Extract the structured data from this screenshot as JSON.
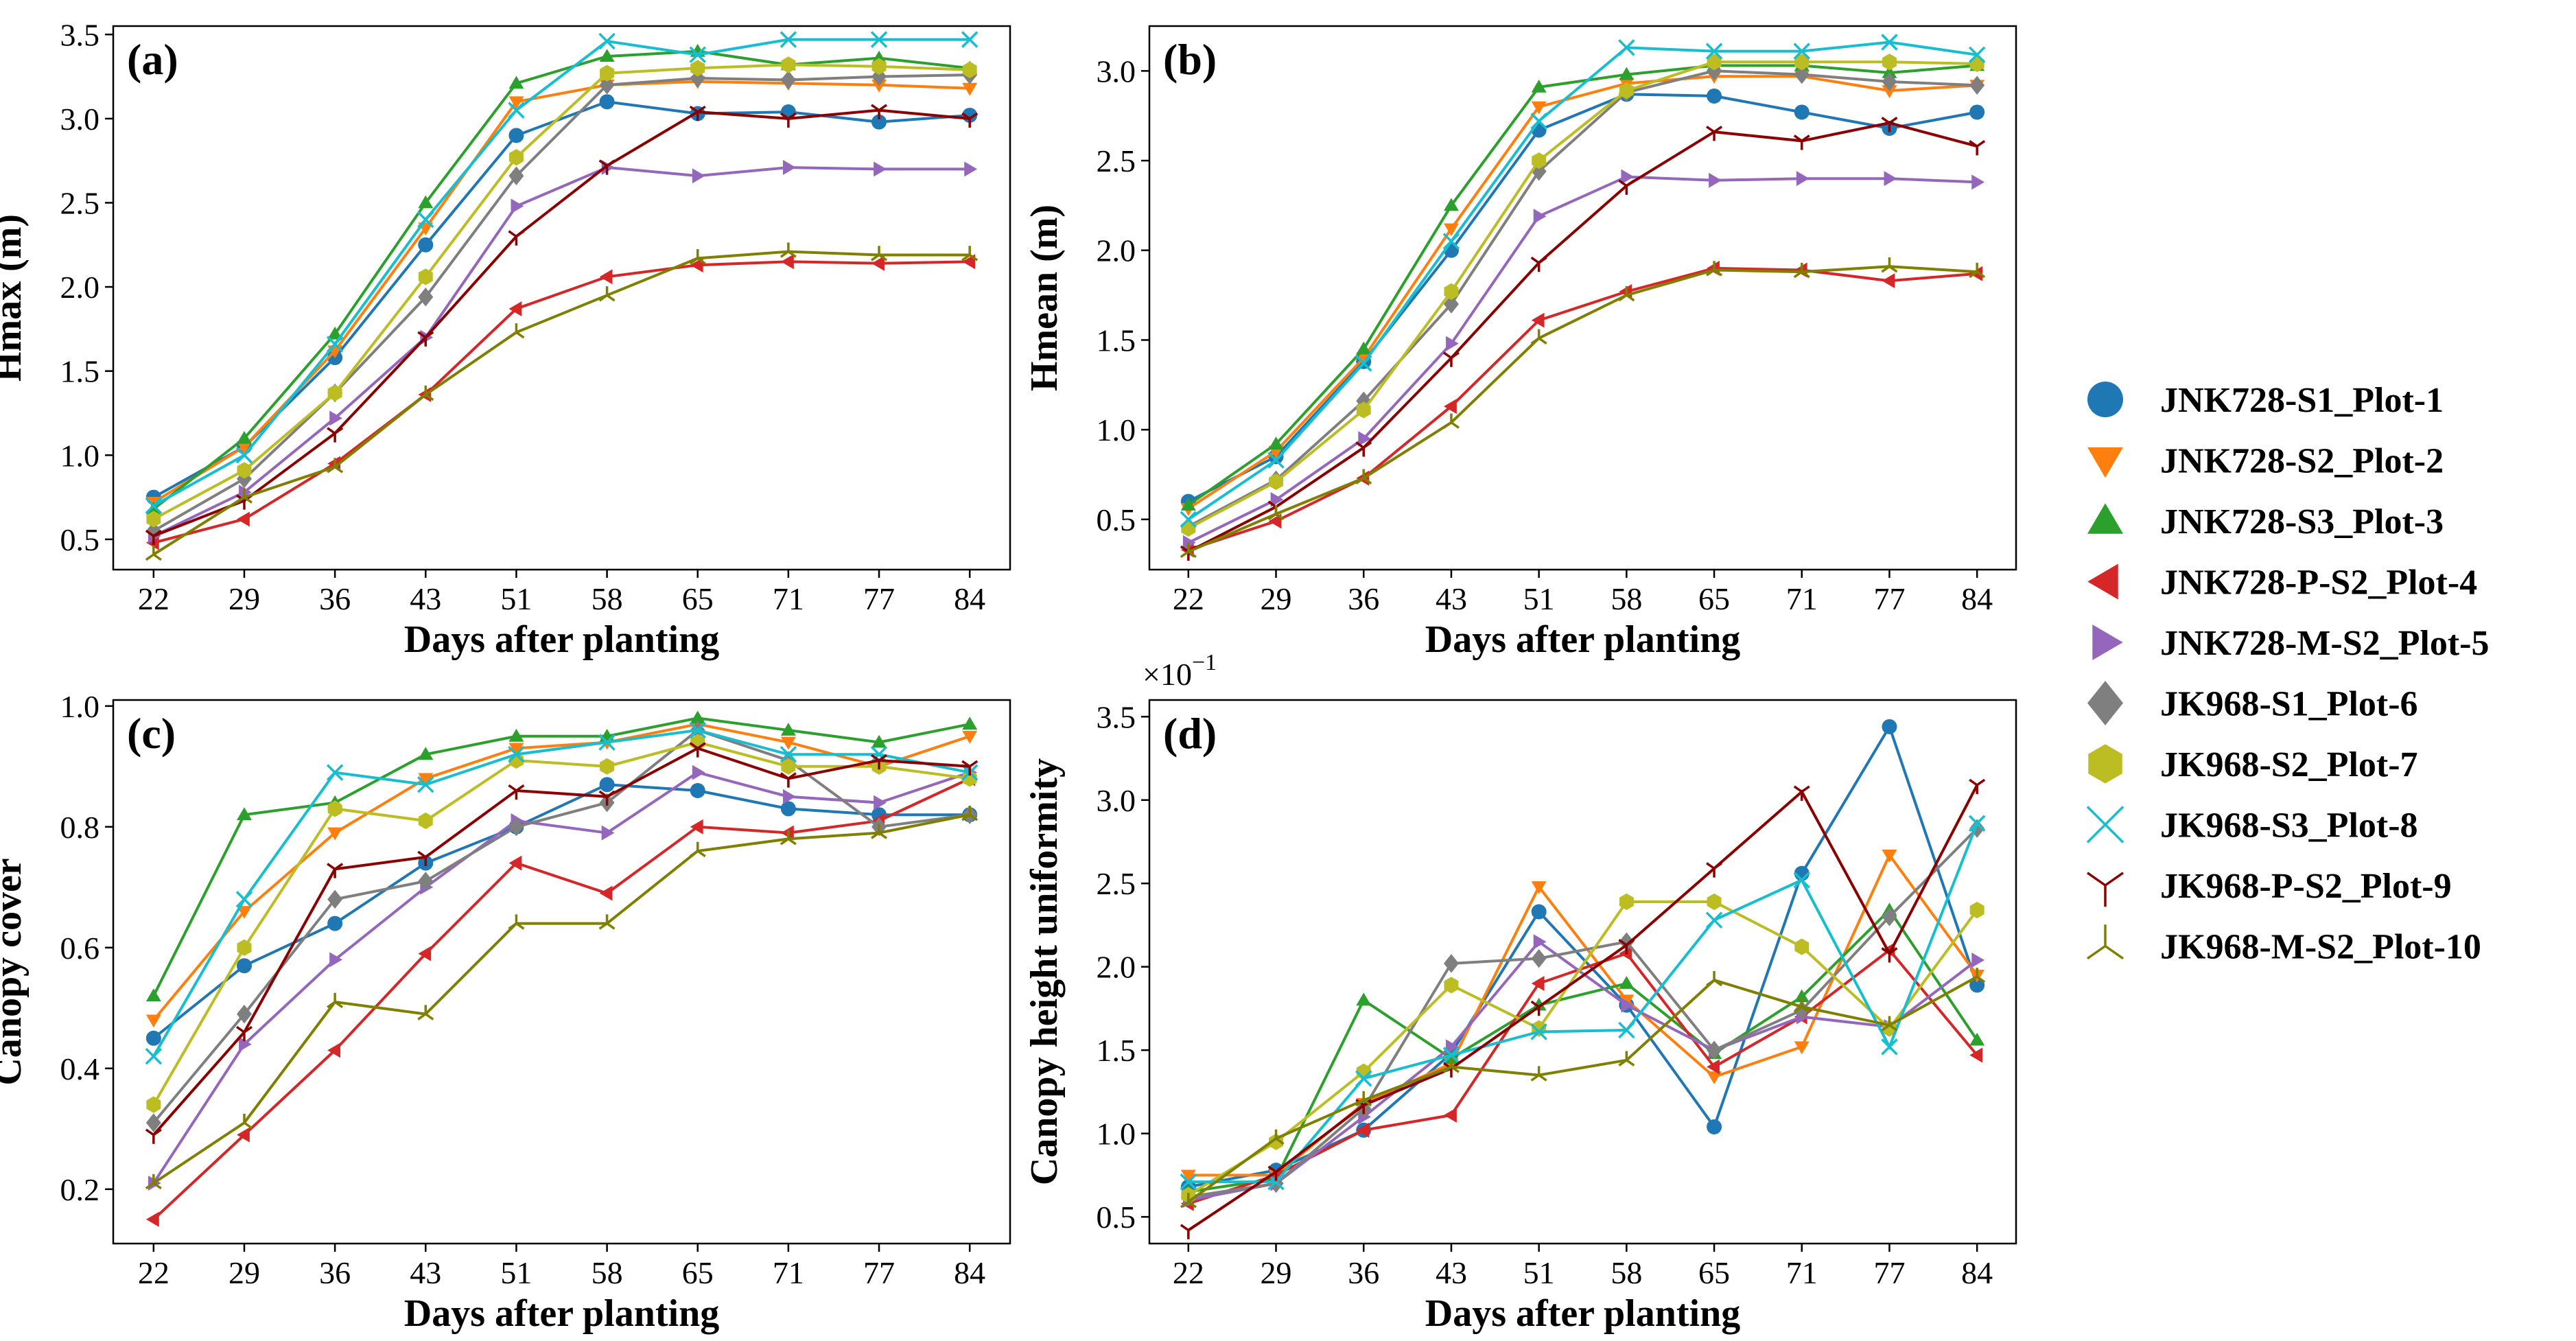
{
  "chart_data": [
    {
      "type": "line",
      "panel": "(a)",
      "xlabel": "Days after planting",
      "ylabel": "Hmax (m)",
      "ylim": [
        0.32,
        3.55
      ],
      "yticks": [
        0.5,
        1.0,
        1.5,
        2.0,
        2.5,
        3.0,
        3.5
      ],
      "ytick_labels": [
        "0.5",
        "1.0",
        "1.5",
        "2.0",
        "2.5",
        "3.0",
        "3.5"
      ],
      "series": [
        {
          "name": "JNK728-S1_Plot-1",
          "values": [
            0.75,
            1.05,
            1.58,
            2.25,
            2.9,
            3.1,
            3.03,
            3.04,
            2.98,
            3.02
          ]
        },
        {
          "name": "JNK728-S2_Plot-2",
          "values": [
            0.72,
            1.05,
            1.62,
            2.35,
            3.1,
            3.2,
            3.22,
            3.21,
            3.2,
            3.18
          ]
        },
        {
          "name": "JNK728-S3_Plot-3",
          "values": [
            0.68,
            1.1,
            1.72,
            2.5,
            3.21,
            3.37,
            3.4,
            3.32,
            3.36,
            3.3
          ]
        },
        {
          "name": "JNK728-P-S2_Plot-4",
          "values": [
            0.48,
            0.62,
            0.95,
            1.36,
            1.87,
            2.06,
            2.13,
            2.15,
            2.14,
            2.15
          ]
        },
        {
          "name": "JNK728-M-S2_Plot-5",
          "values": [
            0.52,
            0.78,
            1.22,
            1.7,
            2.48,
            2.71,
            2.66,
            2.71,
            2.7,
            2.7
          ]
        },
        {
          "name": "JK968-S1_Plot-6",
          "values": [
            0.55,
            0.86,
            1.37,
            1.94,
            2.66,
            3.2,
            3.24,
            3.23,
            3.25,
            3.26
          ]
        },
        {
          "name": "JK968-S2_Plot-7",
          "values": [
            0.62,
            0.91,
            1.37,
            2.06,
            2.77,
            3.27,
            3.3,
            3.32,
            3.31,
            3.29
          ]
        },
        {
          "name": "JK968-S3_Plot-8",
          "values": [
            0.7,
            1.0,
            1.66,
            2.4,
            3.05,
            3.46,
            3.38,
            3.47,
            3.47,
            3.47
          ]
        },
        {
          "name": "JK968-P-S2_Plot-9",
          "values": [
            0.52,
            0.73,
            1.13,
            1.7,
            2.3,
            2.72,
            3.04,
            3.0,
            3.05,
            3.0
          ]
        },
        {
          "name": "JK968-M-S2_Plot-10",
          "values": [
            0.41,
            0.75,
            0.93,
            1.36,
            1.73,
            1.95,
            2.17,
            2.21,
            2.19,
            2.19
          ]
        }
      ]
    },
    {
      "type": "line",
      "panel": "(b)",
      "xlabel": "Days after planting",
      "ylabel": "Hmean (m)",
      "ylim": [
        0.22,
        3.25
      ],
      "yticks": [
        0.5,
        1.0,
        1.5,
        2.0,
        2.5,
        3.0
      ],
      "ytick_labels": [
        "0.5",
        "1.0",
        "1.5",
        "2.0",
        "2.5",
        "3.0"
      ],
      "series": [
        {
          "name": "JNK728-S1_Plot-1",
          "values": [
            0.6,
            0.85,
            1.38,
            2.0,
            2.67,
            2.87,
            2.86,
            2.77,
            2.68,
            2.77
          ]
        },
        {
          "name": "JNK728-S2_Plot-2",
          "values": [
            0.56,
            0.88,
            1.4,
            2.12,
            2.8,
            2.93,
            2.97,
            2.97,
            2.89,
            2.92
          ]
        },
        {
          "name": "JNK728-S3_Plot-3",
          "values": [
            0.58,
            0.92,
            1.45,
            2.25,
            2.91,
            2.98,
            3.03,
            3.03,
            2.99,
            3.03
          ]
        },
        {
          "name": "JNK728-P-S2_Plot-4",
          "values": [
            0.33,
            0.49,
            0.73,
            1.13,
            1.61,
            1.77,
            1.9,
            1.89,
            1.83,
            1.87
          ]
        },
        {
          "name": "JNK728-M-S2_Plot-5",
          "values": [
            0.37,
            0.61,
            0.95,
            1.48,
            2.19,
            2.41,
            2.39,
            2.4,
            2.4,
            2.38
          ]
        },
        {
          "name": "JK968-S1_Plot-6",
          "values": [
            0.46,
            0.72,
            1.16,
            1.7,
            2.44,
            2.88,
            3.0,
            2.98,
            2.94,
            2.92
          ]
        },
        {
          "name": "JK968-S2_Plot-7",
          "values": [
            0.45,
            0.71,
            1.11,
            1.77,
            2.5,
            2.89,
            3.05,
            3.05,
            3.05,
            3.04
          ]
        },
        {
          "name": "JK968-S3_Plot-8",
          "values": [
            0.5,
            0.83,
            1.37,
            2.05,
            2.72,
            3.13,
            3.11,
            3.11,
            3.16,
            3.09
          ]
        },
        {
          "name": "JK968-P-S2_Plot-9",
          "values": [
            0.32,
            0.57,
            0.9,
            1.4,
            1.93,
            2.36,
            2.66,
            2.61,
            2.71,
            2.58
          ]
        },
        {
          "name": "JK968-M-S2_Plot-10",
          "values": [
            0.32,
            0.53,
            0.73,
            1.04,
            1.51,
            1.75,
            1.89,
            1.88,
            1.91,
            1.88
          ]
        }
      ]
    },
    {
      "type": "line",
      "panel": "(c)",
      "xlabel": "Days after planting",
      "ylabel": "Canopy cover",
      "ylim": [
        0.11,
        1.01
      ],
      "yticks": [
        0.2,
        0.4,
        0.6,
        0.8,
        1.0
      ],
      "ytick_labels": [
        "0.2",
        "0.4",
        "0.6",
        "0.8",
        "1.0"
      ],
      "series": [
        {
          "name": "JNK728-S1_Plot-1",
          "values": [
            0.45,
            0.57,
            0.64,
            0.74,
            0.8,
            0.87,
            0.86,
            0.83,
            0.82,
            0.82
          ]
        },
        {
          "name": "JNK728-S2_Plot-2",
          "values": [
            0.48,
            0.66,
            0.79,
            0.88,
            0.93,
            0.94,
            0.97,
            0.94,
            0.9,
            0.95
          ]
        },
        {
          "name": "JNK728-S3_Plot-3",
          "values": [
            0.52,
            0.82,
            0.84,
            0.92,
            0.95,
            0.95,
            0.98,
            0.96,
            0.94,
            0.97
          ]
        },
        {
          "name": "JNK728-P-S2_Plot-4",
          "values": [
            0.15,
            0.29,
            0.43,
            0.59,
            0.74,
            0.69,
            0.8,
            0.79,
            0.81,
            0.88
          ]
        },
        {
          "name": "JNK728-M-S2_Plot-5",
          "values": [
            0.21,
            0.44,
            0.58,
            0.7,
            0.81,
            0.79,
            0.89,
            0.85,
            0.84,
            0.89
          ]
        },
        {
          "name": "JK968-S1_Plot-6",
          "values": [
            0.31,
            0.49,
            0.68,
            0.71,
            0.8,
            0.84,
            0.96,
            0.91,
            0.8,
            0.82
          ]
        },
        {
          "name": "JK968-S2_Plot-7",
          "values": [
            0.34,
            0.6,
            0.83,
            0.81,
            0.91,
            0.9,
            0.94,
            0.9,
            0.9,
            0.88
          ]
        },
        {
          "name": "JK968-S3_Plot-8",
          "values": [
            0.42,
            0.68,
            0.89,
            0.87,
            0.92,
            0.94,
            0.96,
            0.92,
            0.92,
            0.89
          ]
        },
        {
          "name": "JK968-P-S2_Plot-9",
          "values": [
            0.29,
            0.46,
            0.73,
            0.75,
            0.86,
            0.85,
            0.93,
            0.88,
            0.91,
            0.9
          ]
        },
        {
          "name": "JK968-M-S2_Plot-10",
          "values": [
            0.21,
            0.31,
            0.51,
            0.49,
            0.64,
            0.64,
            0.76,
            0.78,
            0.79,
            0.82
          ]
        }
      ]
    },
    {
      "type": "line",
      "panel": "(d)",
      "xlabel": "Days after planting",
      "ylabel": "Canopy height uniformity",
      "y_scale_label": "×10",
      "y_scale_exp": "−1",
      "ylim": [
        0.34,
        3.6
      ],
      "yticks": [
        0.5,
        1.0,
        1.5,
        2.0,
        2.5,
        3.0,
        3.5
      ],
      "ytick_labels": [
        "0.5",
        "1.0",
        "1.5",
        "2.0",
        "2.5",
        "3.0",
        "3.5"
      ],
      "series": [
        {
          "name": "JNK728-S1_Plot-1",
          "values": [
            0.68,
            0.78,
            1.02,
            1.48,
            2.33,
            1.77,
            1.04,
            2.56,
            3.44,
            1.89
          ]
        },
        {
          "name": "JNK728-S2_Plot-2",
          "values": [
            0.75,
            0.75,
            1.18,
            1.42,
            2.48,
            1.8,
            1.34,
            1.52,
            2.67,
            1.95
          ]
        },
        {
          "name": "JNK728-S3_Plot-3",
          "values": [
            0.65,
            0.73,
            1.8,
            1.45,
            1.77,
            1.9,
            1.48,
            1.82,
            2.34,
            1.56
          ]
        },
        {
          "name": "JNK728-P-S2_Plot-4",
          "values": [
            0.58,
            0.75,
            1.02,
            1.11,
            1.9,
            2.08,
            1.4,
            1.7,
            2.1,
            1.47
          ]
        },
        {
          "name": "JNK728-M-S2_Plot-5",
          "values": [
            0.6,
            0.7,
            1.1,
            1.52,
            2.15,
            1.77,
            1.5,
            1.7,
            1.64,
            2.04
          ]
        },
        {
          "name": "JK968-S1_Plot-6",
          "values": [
            0.62,
            0.7,
            1.15,
            2.02,
            2.05,
            2.15,
            1.5,
            1.74,
            2.3,
            2.83
          ]
        },
        {
          "name": "JK968-S2_Plot-7",
          "values": [
            0.63,
            0.95,
            1.37,
            1.89,
            1.63,
            2.39,
            2.39,
            2.12,
            1.63,
            2.34
          ]
        },
        {
          "name": "JK968-S3_Plot-8",
          "values": [
            0.71,
            0.71,
            1.33,
            1.47,
            1.61,
            1.62,
            2.28,
            2.52,
            1.52,
            2.86
          ]
        },
        {
          "name": "JK968-P-S2_Plot-9",
          "values": [
            0.42,
            0.77,
            1.17,
            1.39,
            1.76,
            2.13,
            2.59,
            3.05,
            2.08,
            3.09
          ]
        },
        {
          "name": "JK968-M-S2_Plot-10",
          "values": [
            0.59,
            0.97,
            1.2,
            1.4,
            1.35,
            1.44,
            1.92,
            1.76,
            1.65,
            1.94
          ]
        }
      ]
    }
  ],
  "x_categories": [
    "22",
    "29",
    "36",
    "43",
    "51",
    "58",
    "65",
    "71",
    "77",
    "84"
  ],
  "legend": [
    {
      "name": "JNK728-S1_Plot-1",
      "color": "#1f77b4",
      "marker": "circle"
    },
    {
      "name": "JNK728-S2_Plot-2",
      "color": "#ff7f0e",
      "marker": "triangle-down"
    },
    {
      "name": "JNK728-S3_Plot-3",
      "color": "#2ca02c",
      "marker": "triangle-up"
    },
    {
      "name": "JNK728-P-S2_Plot-4",
      "color": "#d62728",
      "marker": "triangle-left"
    },
    {
      "name": "JNK728-M-S2_Plot-5",
      "color": "#9467bd",
      "marker": "triangle-right"
    },
    {
      "name": "JK968-S1_Plot-6",
      "color": "#7f7f7f",
      "marker": "diamond"
    },
    {
      "name": "JK968-S2_Plot-7",
      "color": "#bcbd22",
      "marker": "hexagon"
    },
    {
      "name": "JK968-S3_Plot-8",
      "color": "#17becf",
      "marker": "x"
    },
    {
      "name": "JK968-P-S2_Plot-9",
      "color": "#8b0000",
      "marker": "tri-down"
    },
    {
      "name": "JK968-M-S2_Plot-10",
      "color": "#808000",
      "marker": "tri-up"
    }
  ]
}
